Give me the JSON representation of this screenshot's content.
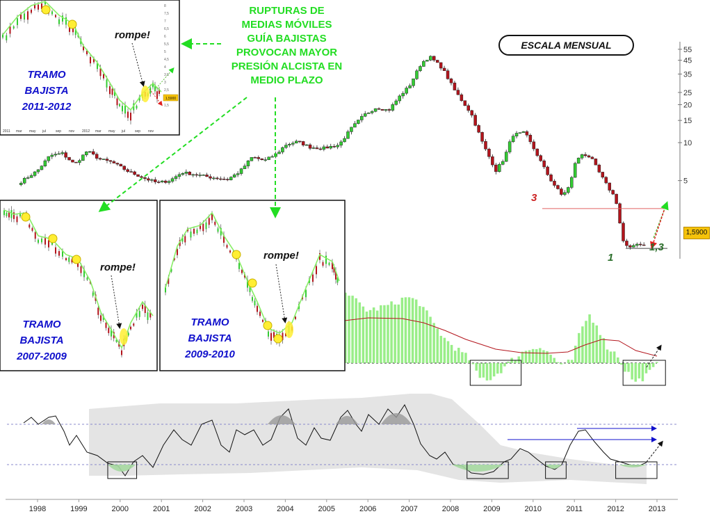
{
  "headline": [
    "RUPTURAS DE",
    "MEDIAS MÓVILES",
    "GUÍA BAJISTAS",
    "PROVOCAN MAYOR",
    "PRESIÓN ALCISTA EN",
    "MEDIO PLAZO"
  ],
  "scale_badge": "ESCALA MENSUAL",
  "price_tag": "1,5900",
  "labels": {
    "level_3": "3",
    "level_1": "1",
    "target": "1,3"
  },
  "insets": [
    {
      "title": [
        "TRAMO",
        "BAJISTA",
        "2011-2012"
      ],
      "annotation": "rompe!"
    },
    {
      "title": [
        "TRAMO",
        "BAJISTA",
        "2007-2009"
      ],
      "annotation": "rompe!"
    },
    {
      "title": [
        "TRAMO",
        "BAJISTA",
        "2009-2010"
      ],
      "annotation": "rompe!"
    }
  ],
  "inset_small_axis": {
    "x_ticks": [
      "2011",
      "mar",
      "may",
      "jul",
      "sep",
      "nov",
      "2012",
      "mar",
      "may",
      "jul",
      "sep",
      "nov"
    ],
    "y_ticks": [
      "8",
      "7,5",
      "7",
      "6,5",
      "6",
      "5,5",
      "5",
      "4,5",
      "4",
      "3,5",
      "3",
      "2,5",
      "2",
      "1,5"
    ],
    "price_tag": "1,5900"
  },
  "colors": {
    "up": "#33cc33",
    "down": "#b3141c",
    "ma": "#88ee66",
    "signal": "#b3141c",
    "headline": "#22dd22",
    "tramo": "#1010cc",
    "target": "#2a6e2a",
    "level3": "#cc2222"
  },
  "chart_data": [
    {
      "type": "candlestick",
      "name": "price",
      "scale": "log",
      "x_ticks": [
        "1998",
        "1999",
        "2000",
        "2001",
        "2002",
        "2003",
        "2004",
        "2005",
        "2006",
        "2007",
        "2008",
        "2009",
        "2010",
        "2011",
        "2012",
        "2013"
      ],
      "y_ticks": [
        55,
        45,
        35,
        25,
        20,
        15,
        10,
        5
      ],
      "ylim": [
        1.2,
        60
      ],
      "close_path": [
        [
          1997.6,
          4.9
        ],
        [
          1998.0,
          6.0
        ],
        [
          1998.3,
          7.9
        ],
        [
          1998.6,
          8.2
        ],
        [
          1998.9,
          6.7
        ],
        [
          1999.2,
          8.6
        ],
        [
          1999.5,
          7.4
        ],
        [
          1999.8,
          7.0
        ],
        [
          2000.2,
          5.9
        ],
        [
          2000.6,
          5.2
        ],
        [
          2000.9,
          4.8
        ],
        [
          2001.2,
          5.0
        ],
        [
          2001.5,
          5.8
        ],
        [
          2001.8,
          5.6
        ],
        [
          2002.2,
          5.3
        ],
        [
          2002.6,
          5.1
        ],
        [
          2002.9,
          5.9
        ],
        [
          2003.2,
          7.7
        ],
        [
          2003.5,
          7.2
        ],
        [
          2003.8,
          8.2
        ],
        [
          2004.0,
          9.6
        ],
        [
          2004.3,
          10.2
        ],
        [
          2004.6,
          9.2
        ],
        [
          2004.9,
          9.0
        ],
        [
          2005.3,
          9.6
        ],
        [
          2005.6,
          13.0
        ],
        [
          2005.9,
          16.5
        ],
        [
          2006.2,
          19.0
        ],
        [
          2006.5,
          18.0
        ],
        [
          2006.8,
          24.0
        ],
        [
          2007.0,
          28.0
        ],
        [
          2007.3,
          43.0
        ],
        [
          2007.5,
          48.0
        ],
        [
          2007.8,
          39.0
        ],
        [
          2008.1,
          26.0
        ],
        [
          2008.5,
          17.0
        ],
        [
          2008.8,
          9.5
        ],
        [
          2009.1,
          6.0
        ],
        [
          2009.3,
          7.5
        ],
        [
          2009.5,
          11.5
        ],
        [
          2009.8,
          12.0
        ],
        [
          2010.1,
          8.0
        ],
        [
          2010.4,
          5.2
        ],
        [
          2010.7,
          3.8
        ],
        [
          2010.9,
          4.6
        ],
        [
          2011.0,
          6.8
        ],
        [
          2011.2,
          8.2
        ],
        [
          2011.4,
          7.6
        ],
        [
          2011.6,
          5.8
        ],
        [
          2011.8,
          4.5
        ],
        [
          2012.0,
          3.6
        ],
        [
          2012.1,
          2.3
        ],
        [
          2012.2,
          1.55
        ],
        [
          2012.35,
          1.45
        ],
        [
          2012.5,
          1.6
        ],
        [
          2012.6,
          1.55
        ],
        [
          2012.75,
          1.59
        ]
      ],
      "levels": [
        {
          "label": "3",
          "value": 3.0
        },
        {
          "label": "1",
          "value": 1.45
        }
      ],
      "last_price": 1.59
    },
    {
      "type": "bar",
      "name": "momentum",
      "signal_line": true,
      "highlight_boxes": [
        [
          2008.4,
          2009.6
        ],
        [
          2012.0,
          2013.0
        ]
      ]
    },
    {
      "type": "line",
      "name": "oscillator",
      "band": true,
      "highlight_boxes": [
        [
          1999.7,
          2000.4
        ],
        [
          2008.4,
          2009.4
        ],
        [
          2010.3,
          2010.8
        ],
        [
          2012.0,
          2013.0
        ]
      ]
    }
  ]
}
